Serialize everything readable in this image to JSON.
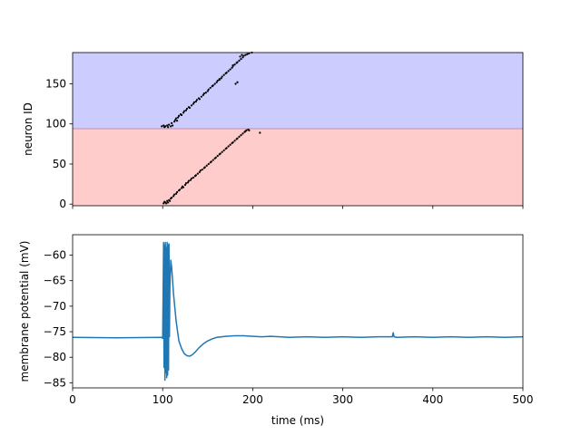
{
  "chart_data": [
    {
      "type": "scatter",
      "title": "",
      "xlabel": "",
      "ylabel": "neuron ID",
      "xlim": [
        0,
        500
      ],
      "ylim": [
        -2,
        189
      ],
      "x_ticks": [
        0,
        100,
        200,
        300,
        400,
        500
      ],
      "x_tick_labels_shown": false,
      "y_ticks": [
        0,
        50,
        100,
        150
      ],
      "y_tick_labels": [
        "0",
        "50",
        "100",
        "150"
      ],
      "grid": false,
      "regions": [
        {
          "y_from": -2,
          "y_to": 94,
          "color": "#ffcccc"
        },
        {
          "y_from": 94,
          "y_to": 189,
          "color": "#ccccff"
        }
      ],
      "region_boundary": {
        "y": 94,
        "color": "#c28bb2"
      },
      "series": [
        {
          "marker_color": "#000000",
          "points": [
            [
              101,
              1
            ],
            [
              102,
              3
            ],
            [
              103,
              2
            ],
            [
              104,
              1
            ],
            [
              105,
              4
            ],
            [
              106,
              2
            ],
            [
              107,
              5
            ],
            [
              108,
              4
            ],
            [
              109,
              7
            ],
            [
              110,
              8
            ],
            [
              112,
              10
            ],
            [
              113,
              12
            ],
            [
              115,
              13
            ],
            [
              116,
              15
            ],
            [
              118,
              17
            ],
            [
              119,
              18
            ],
            [
              121,
              20
            ],
            [
              122,
              22
            ],
            [
              123,
              21
            ],
            [
              125,
              24
            ],
            [
              126,
              26
            ],
            [
              128,
              27
            ],
            [
              129,
              29
            ],
            [
              131,
              30
            ],
            [
              132,
              32
            ],
            [
              134,
              33
            ],
            [
              136,
              35
            ],
            [
              137,
              36
            ],
            [
              139,
              38
            ],
            [
              141,
              40
            ],
            [
              142,
              42
            ],
            [
              144,
              43
            ],
            [
              146,
              45
            ],
            [
              147,
              46
            ],
            [
              149,
              48
            ],
            [
              151,
              50
            ],
            [
              153,
              52
            ],
            [
              154,
              53
            ],
            [
              156,
              55
            ],
            [
              158,
              57
            ],
            [
              159,
              58
            ],
            [
              161,
              60
            ],
            [
              163,
              62
            ],
            [
              164,
              63
            ],
            [
              166,
              65
            ],
            [
              168,
              67
            ],
            [
              170,
              69
            ],
            [
              171,
              70
            ],
            [
              173,
              72
            ],
            [
              175,
              74
            ],
            [
              177,
              76
            ],
            [
              178,
              77
            ],
            [
              180,
              79
            ],
            [
              182,
              81
            ],
            [
              183,
              82
            ],
            [
              185,
              84
            ],
            [
              187,
              86
            ],
            [
              189,
              88
            ],
            [
              191,
              90
            ],
            [
              193,
              92
            ],
            [
              195,
              93
            ],
            [
              192,
              91
            ],
            [
              196,
              92
            ],
            [
              208,
              89
            ],
            [
              99,
              97
            ],
            [
              101,
              98
            ],
            [
              102,
              96
            ],
            [
              103,
              97
            ],
            [
              105,
              98
            ],
            [
              106,
              96
            ],
            [
              107,
              99
            ],
            [
              109,
              97
            ],
            [
              110,
              101
            ],
            [
              111,
              98
            ],
            [
              113,
              103
            ],
            [
              114,
              105
            ],
            [
              115,
              107
            ],
            [
              116,
              104
            ],
            [
              117,
              108
            ],
            [
              118,
              110
            ],
            [
              120,
              112
            ],
            [
              121,
              111
            ],
            [
              123,
              114
            ],
            [
              124,
              116
            ],
            [
              126,
              117
            ],
            [
              127,
              119
            ],
            [
              129,
              121
            ],
            [
              130,
              120
            ],
            [
              132,
              123
            ],
            [
              134,
              125
            ],
            [
              135,
              127
            ],
            [
              137,
              128
            ],
            [
              138,
              130
            ],
            [
              140,
              132
            ],
            [
              141,
              131
            ],
            [
              143,
              134
            ],
            [
              145,
              136
            ],
            [
              146,
              138
            ],
            [
              148,
              139
            ],
            [
              150,
              141
            ],
            [
              151,
              143
            ],
            [
              153,
              145
            ],
            [
              155,
              147
            ],
            [
              156,
              148
            ],
            [
              158,
              150
            ],
            [
              160,
              152
            ],
            [
              161,
              154
            ],
            [
              163,
              155
            ],
            [
              165,
              157
            ],
            [
              166,
              159
            ],
            [
              168,
              161
            ],
            [
              170,
              163
            ],
            [
              171,
              164
            ],
            [
              173,
              166
            ],
            [
              175,
              168
            ],
            [
              177,
              170
            ],
            [
              178,
              172
            ],
            [
              180,
              174
            ],
            [
              182,
              176
            ],
            [
              183,
              177
            ],
            [
              185,
              179
            ],
            [
              187,
              181
            ],
            [
              189,
              183
            ],
            [
              190,
              185
            ],
            [
              192,
              186
            ],
            [
              194,
              187
            ],
            [
              186,
              184
            ],
            [
              188,
              186
            ],
            [
              181,
              150
            ],
            [
              183,
              152
            ],
            [
              196,
              188
            ],
            [
              199,
              189
            ],
            [
              163,
              156
            ],
            [
              178,
              173
            ]
          ]
        }
      ]
    },
    {
      "type": "line",
      "title": "",
      "xlabel": "time (ms)",
      "ylabel": "membrane potential (mV)",
      "xlim": [
        0,
        500
      ],
      "ylim": [
        -86,
        -56
      ],
      "x_ticks": [
        0,
        100,
        200,
        300,
        400,
        500
      ],
      "x_tick_labels": [
        "0",
        "100",
        "200",
        "300",
        "400",
        "500"
      ],
      "y_ticks": [
        -85,
        -80,
        -75,
        -70,
        -65,
        -60
      ],
      "y_tick_labels": [
        "−85",
        "−80",
        "−75",
        "−70",
        "−65",
        "−60"
      ],
      "grid": false,
      "series": [
        {
          "color": "#1f77b4",
          "x": [
            0,
            50,
            99,
            100,
            101,
            101.5,
            102,
            102.5,
            103,
            103.5,
            104,
            104.5,
            105,
            105.5,
            106,
            106.5,
            107,
            107.5,
            108,
            109,
            110,
            112,
            115,
            118,
            121,
            124,
            127,
            130,
            133,
            136,
            140,
            145,
            150,
            155,
            160,
            170,
            180,
            190,
            200,
            210,
            220,
            230,
            240,
            260,
            280,
            300,
            320,
            340,
            355,
            356,
            357,
            360,
            380,
            400,
            420,
            440,
            460,
            480,
            500
          ],
          "y": [
            -76.1,
            -76.2,
            -76.1,
            -76.3,
            -57.5,
            -82.0,
            -58.0,
            -84.5,
            -57.5,
            -83.0,
            -58.5,
            -84.0,
            -57.5,
            -83.5,
            -58.0,
            -82.5,
            -57.8,
            -76.0,
            -66.0,
            -61.0,
            -62.5,
            -67.5,
            -73.0,
            -76.8,
            -78.3,
            -79.3,
            -79.7,
            -79.8,
            -79.5,
            -79.0,
            -78.2,
            -77.4,
            -76.8,
            -76.4,
            -76.1,
            -75.9,
            -75.8,
            -75.8,
            -75.9,
            -76.0,
            -75.9,
            -76.0,
            -76.1,
            -76.0,
            -76.1,
            -76.0,
            -76.1,
            -76.0,
            -76.0,
            -75.2,
            -76.0,
            -76.1,
            -76.0,
            -76.1,
            -76.0,
            -76.1,
            -76.0,
            -76.1,
            -76.0
          ]
        }
      ]
    }
  ]
}
